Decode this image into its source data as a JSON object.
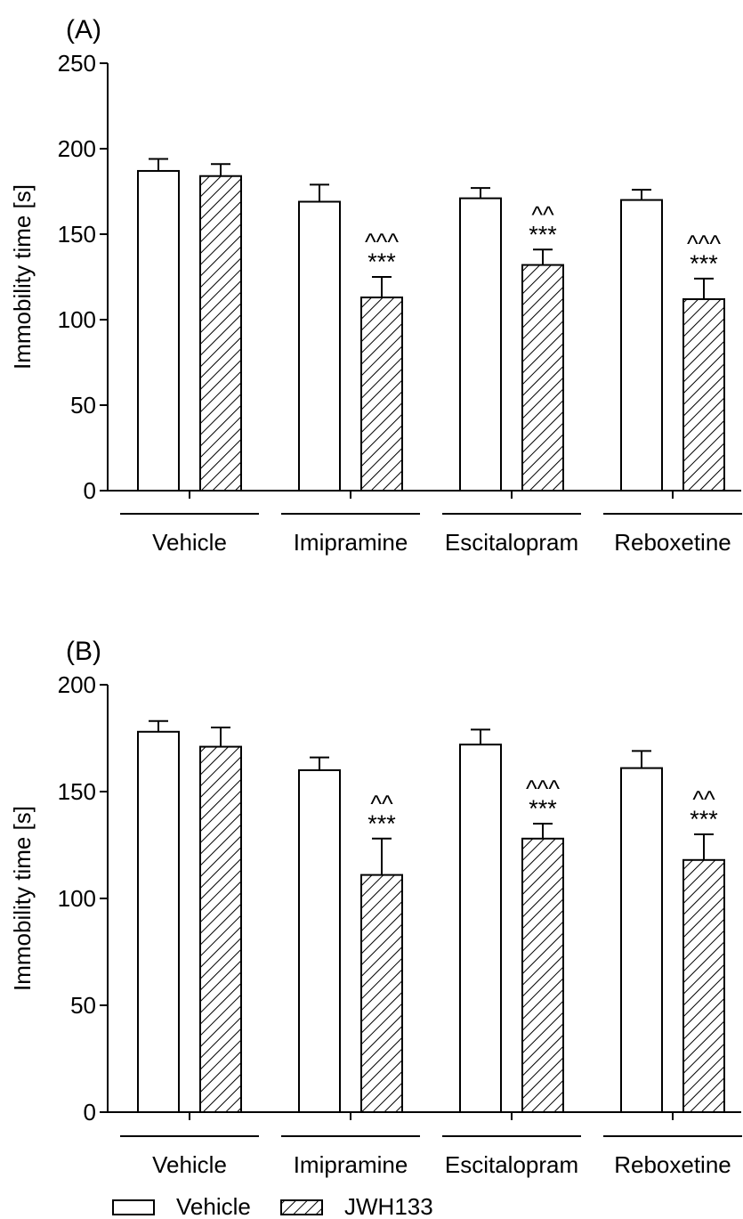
{
  "legend": {
    "items": [
      {
        "label": "Vehicle",
        "fill": "plain"
      },
      {
        "label": "JWH133",
        "fill": "hatched"
      }
    ]
  },
  "colors": {
    "bar_fill": "#ffffff",
    "stroke": "#000000"
  },
  "chart_data": [
    {
      "type": "bar",
      "panel_label": "(A)",
      "ylabel": "Immobility time [s]",
      "xlabel": "",
      "ylim": [
        0,
        250
      ],
      "yticks": [
        0,
        50,
        100,
        150,
        200,
        250
      ],
      "categories": [
        "Vehicle",
        "Imipramine",
        "Escitalopram",
        "Reboxetine"
      ],
      "series": [
        {
          "name": "Vehicle",
          "pattern": "plain",
          "values": [
            187,
            169,
            171,
            170
          ],
          "errors": [
            7,
            10,
            6,
            6
          ]
        },
        {
          "name": "JWH133",
          "pattern": "hatched",
          "values": [
            184,
            113,
            132,
            112
          ],
          "errors": [
            7,
            12,
            9,
            12
          ]
        }
      ],
      "annotations": [
        {
          "category": "Imipramine",
          "series": "JWH133",
          "stars": "***",
          "carets": "^^^"
        },
        {
          "category": "Escitalopram",
          "series": "JWH133",
          "stars": "***",
          "carets": "^^"
        },
        {
          "category": "Reboxetine",
          "series": "JWH133",
          "stars": "***",
          "carets": "^^^"
        }
      ],
      "grid": false
    },
    {
      "type": "bar",
      "panel_label": "(B)",
      "ylabel": "Immobility time [s]",
      "xlabel": "",
      "ylim": [
        0,
        200
      ],
      "yticks": [
        0,
        50,
        100,
        150,
        200
      ],
      "categories": [
        "Vehicle",
        "Imipramine",
        "Escitalopram",
        "Reboxetine"
      ],
      "series": [
        {
          "name": "Vehicle",
          "pattern": "plain",
          "values": [
            178,
            160,
            172,
            161
          ],
          "errors": [
            5,
            6,
            7,
            8
          ]
        },
        {
          "name": "JWH133",
          "pattern": "hatched",
          "values": [
            171,
            111,
            128,
            118
          ],
          "errors": [
            9,
            17,
            7,
            12
          ]
        }
      ],
      "annotations": [
        {
          "category": "Imipramine",
          "series": "JWH133",
          "stars": "***",
          "carets": "^^"
        },
        {
          "category": "Escitalopram",
          "series": "JWH133",
          "stars": "***",
          "carets": "^^^"
        },
        {
          "category": "Reboxetine",
          "series": "JWH133",
          "stars": "***",
          "carets": "^^"
        }
      ],
      "grid": false
    }
  ]
}
